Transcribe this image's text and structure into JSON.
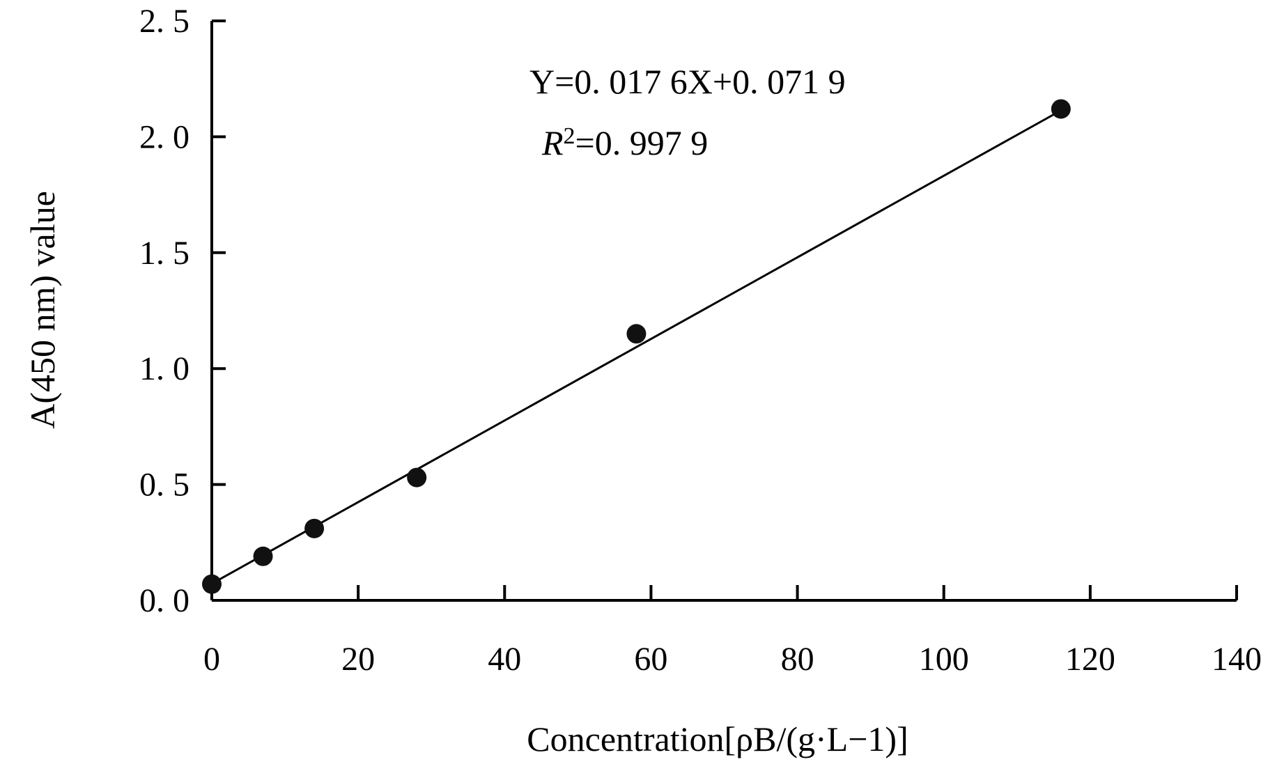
{
  "chart_data": {
    "type": "scatter",
    "xlabel": "Concentration[ρB/(g·L−1)]",
    "ylabel": "A(450 nm) value",
    "xlim": [
      0,
      140
    ],
    "ylim": [
      0,
      2.5
    ],
    "xticks": [
      "0",
      "20",
      "40",
      "60",
      "80",
      "100",
      "120",
      "140"
    ],
    "yticks": [
      "0. 0",
      "0. 5",
      "1. 0",
      "1. 5",
      "2. 0",
      "2. 5"
    ],
    "grid": false,
    "points": [
      {
        "x": 0,
        "y": 0.07
      },
      {
        "x": 7,
        "y": 0.19
      },
      {
        "x": 14,
        "y": 0.31
      },
      {
        "x": 28,
        "y": 0.53
      },
      {
        "x": 58,
        "y": 1.15
      },
      {
        "x": 116,
        "y": 2.12
      }
    ],
    "fit_line": {
      "slope": 0.0176,
      "intercept": 0.0719,
      "x_range": [
        0,
        116
      ]
    },
    "annotations": {
      "equation": "Y=0. 017  6X+0. 071 9",
      "r_squared_symbol": "R",
      "r_squared_exponent": "2",
      "r_squared_value": "=0. 997  9"
    }
  }
}
